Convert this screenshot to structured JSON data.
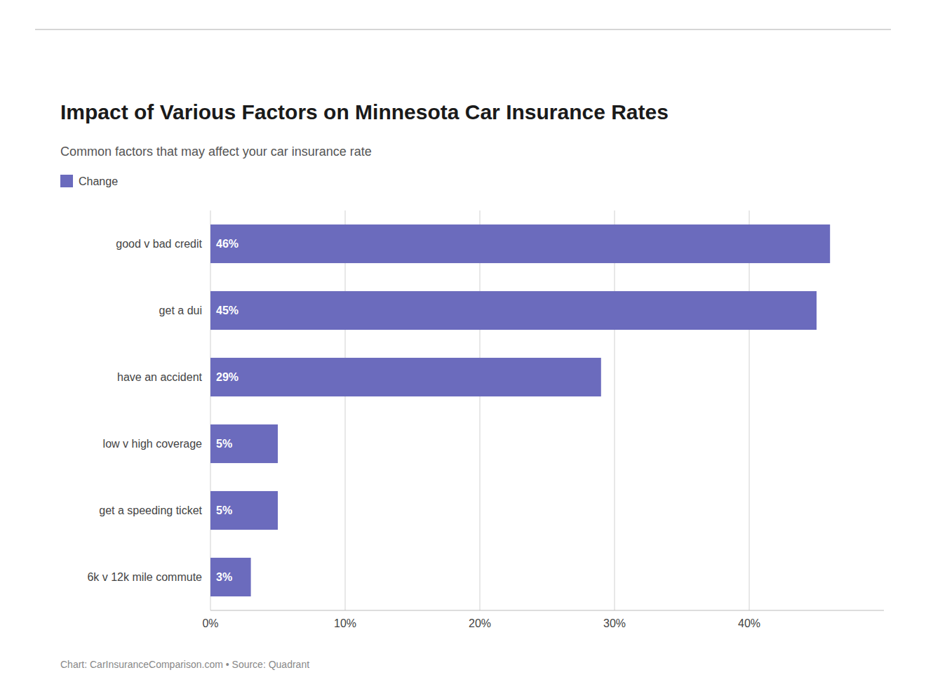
{
  "chart_data": {
    "type": "bar",
    "orientation": "horizontal",
    "title": "Impact of Various Factors on Minnesota Car Insurance Rates",
    "subtitle": "Common factors that may affect your car insurance rate",
    "footer": "Chart: CarInsuranceComparison.com • Source: Quadrant",
    "categories": [
      "good v bad credit",
      "get a dui",
      "have an accident",
      "low v high coverage",
      "get a speeding ticket",
      "6k v 12k mile commute"
    ],
    "series": [
      {
        "name": "Change",
        "color": "#6b6bbd",
        "values": [
          46,
          45,
          29,
          5,
          5,
          3
        ],
        "value_labels": [
          "46%",
          "45%",
          "29%",
          "5%",
          "5%",
          "3%"
        ]
      }
    ],
    "xlim": [
      0,
      50
    ],
    "xticks": [
      {
        "value": 0,
        "label": "0%"
      },
      {
        "value": 10,
        "label": "10%"
      },
      {
        "value": 20,
        "label": "20%"
      },
      {
        "value": 30,
        "label": "30%"
      },
      {
        "value": 40,
        "label": "40%"
      }
    ],
    "grid": true,
    "legend": "upper left",
    "data_labels": true
  }
}
